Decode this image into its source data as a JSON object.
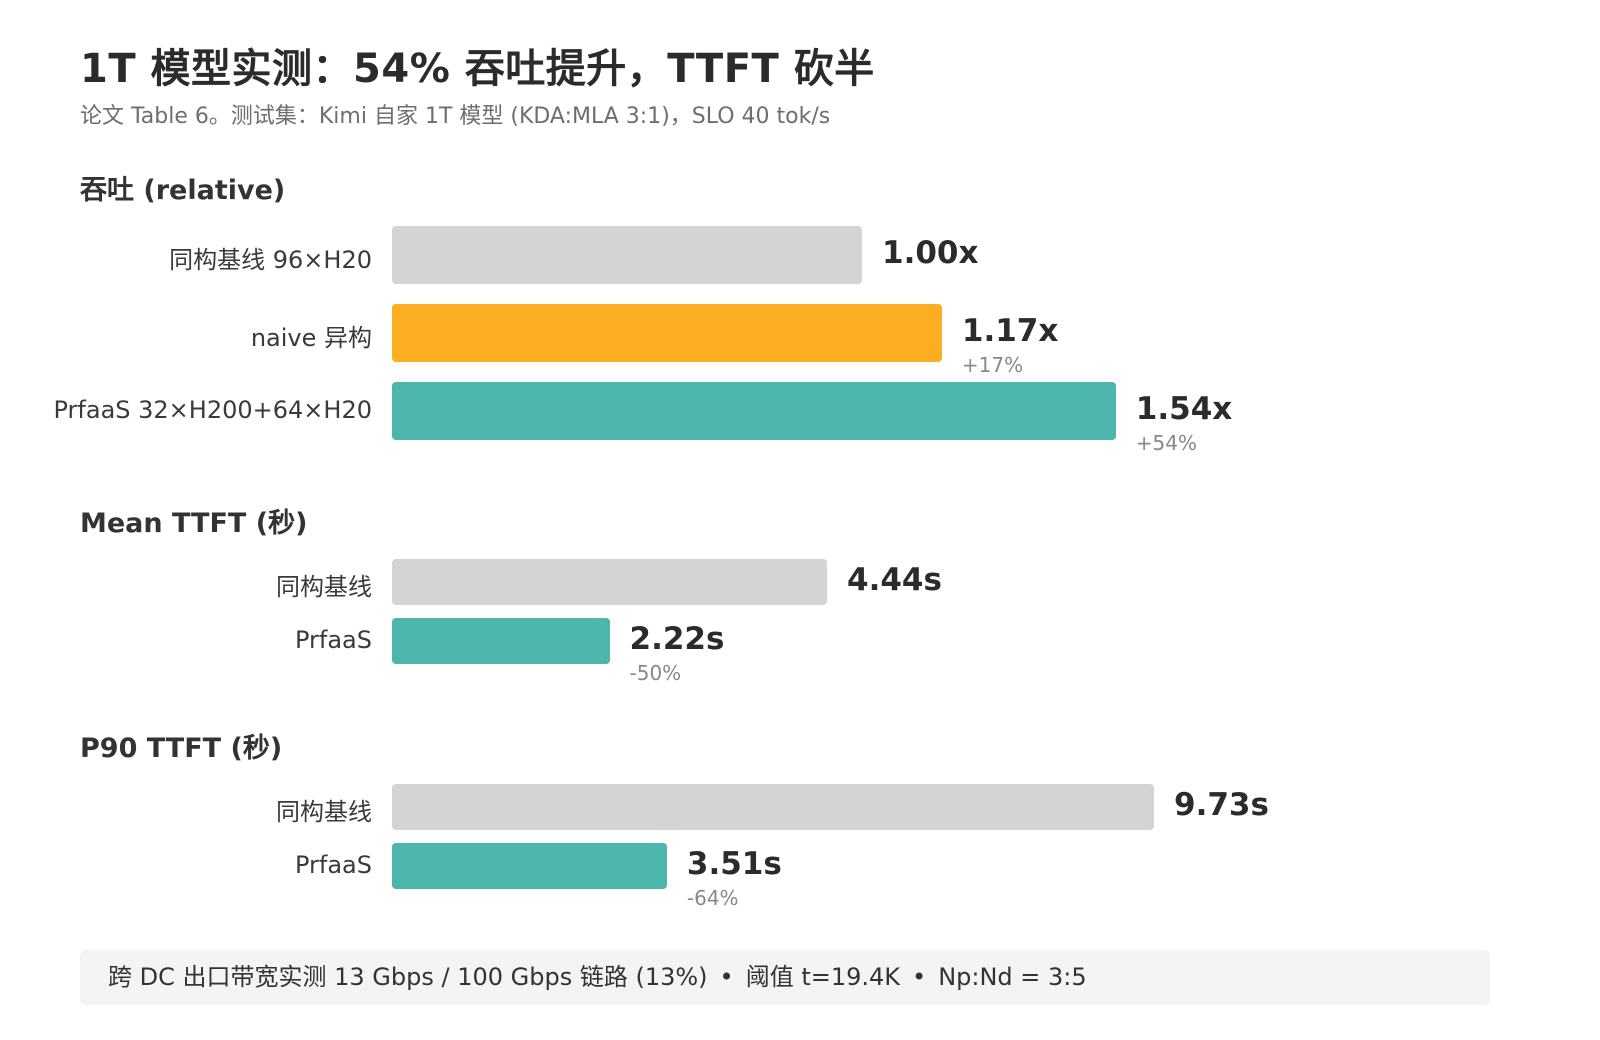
{
  "title": "1T 模型实测：54% 吞吐提升，TTFT 砍半",
  "subtitle": "论文 Table 6。测试集：Kimi 自家 1T 模型 (KDA:MLA 3:1)，SLO 40 tok/s",
  "colors": {
    "baseline": "#d4d4d4",
    "naive": "#fcae23",
    "prfaas": "#4cb5ac"
  },
  "chart_data": [
    {
      "type": "bar",
      "orientation": "horizontal",
      "title": "吞吐 (relative)",
      "categories": [
        "同构基线 96×H20",
        "naive 异构",
        "PrfaaS 32×H200+64×H20"
      ],
      "values": [
        1.0,
        1.17,
        1.54
      ],
      "value_labels": [
        "1.00x",
        "1.17x",
        "1.54x"
      ],
      "delta_labels": [
        "",
        "+17%",
        "+54%"
      ],
      "colors": [
        "#d4d4d4",
        "#fcae23",
        "#4cb5ac"
      ]
    },
    {
      "type": "bar",
      "orientation": "horizontal",
      "title": "Mean TTFT (秒)",
      "categories": [
        "同构基线",
        "PrfaaS"
      ],
      "values": [
        4.44,
        2.22
      ],
      "value_labels": [
        "4.44s",
        "2.22s"
      ],
      "delta_labels": [
        "",
        "-50%"
      ],
      "colors": [
        "#d4d4d4",
        "#4cb5ac"
      ]
    },
    {
      "type": "bar",
      "orientation": "horizontal",
      "title": "P90 TTFT (秒)",
      "categories": [
        "同构基线",
        "PrfaaS"
      ],
      "values": [
        9.73,
        3.51
      ],
      "value_labels": [
        "9.73s",
        "3.51s"
      ],
      "delta_labels": [
        "",
        "-64%"
      ],
      "colors": [
        "#d4d4d4",
        "#4cb5ac"
      ]
    }
  ],
  "footer": {
    "items": [
      "跨 DC 出口带宽实测 13 Gbps / 100 Gbps 链路 (13%)",
      "阈值 t=19.4K",
      "Np:Nd = 3:5"
    ],
    "separator": "•"
  }
}
